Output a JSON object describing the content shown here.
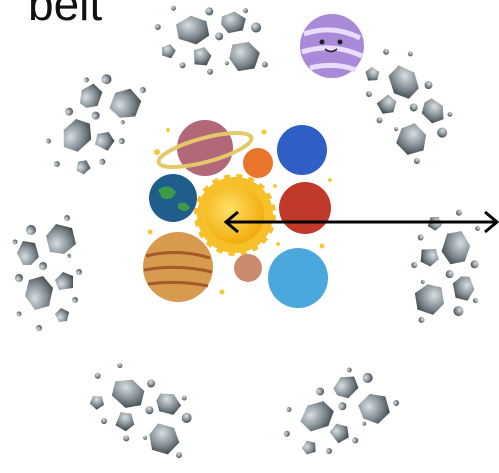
{
  "caption": "belt"
}
